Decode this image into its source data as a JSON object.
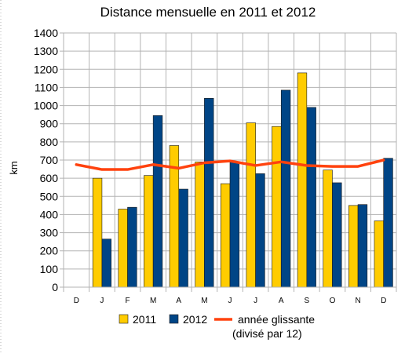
{
  "chart_data": {
    "type": "bar",
    "title": "Distance mensuelle en 2011 et 2012",
    "xlabel": "",
    "ylabel": "km",
    "ylim": [
      0,
      1400
    ],
    "yticks": [
      0,
      100,
      200,
      300,
      400,
      500,
      600,
      700,
      800,
      900,
      1000,
      1100,
      1200,
      1300,
      1400
    ],
    "grid": true,
    "legend_position": "bottom",
    "categories": [
      "D",
      "J",
      "F",
      "M",
      "A",
      "M",
      "J",
      "J",
      "A",
      "S",
      "O",
      "N",
      "D"
    ],
    "series": [
      {
        "name": "2011",
        "kind": "bar",
        "color": "#ffcc00",
        "values": [
          null,
          600,
          430,
          615,
          780,
          690,
          570,
          905,
          885,
          1180,
          645,
          450,
          365
        ]
      },
      {
        "name": "2012",
        "kind": "bar",
        "color": "#004586",
        "values": [
          null,
          265,
          440,
          945,
          540,
          1040,
          690,
          625,
          1085,
          990,
          575,
          455,
          710
        ]
      },
      {
        "name": "année glissante",
        "name_line2": "(divisé par 12)",
        "kind": "line",
        "color": "#ff420e",
        "values": [
          675,
          648,
          648,
          675,
          655,
          685,
          695,
          670,
          690,
          670,
          665,
          665,
          700
        ]
      }
    ]
  }
}
